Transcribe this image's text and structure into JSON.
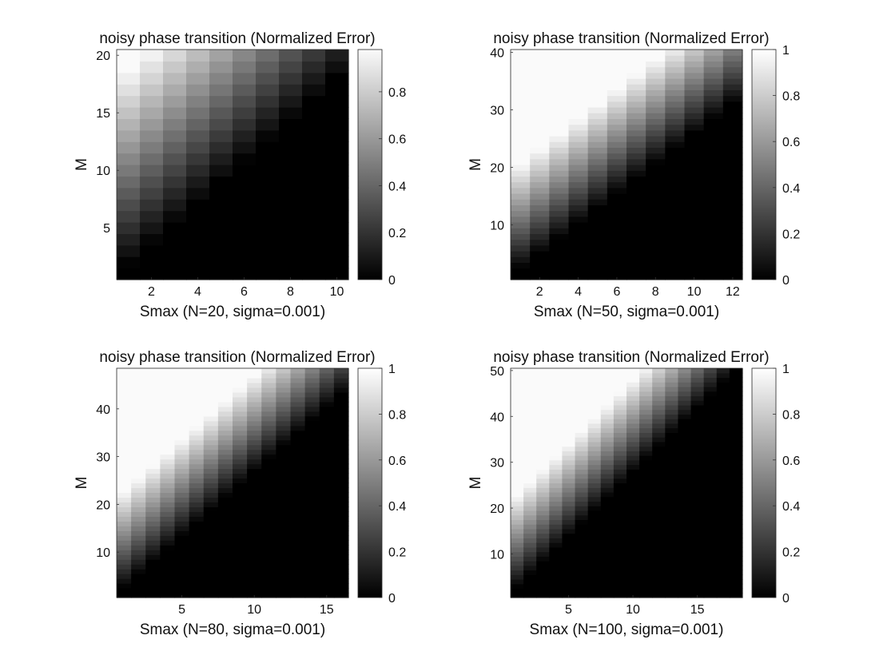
{
  "chart_data": [
    {
      "type": "heatmap",
      "title": "noisy phase transition (Normalized Error)",
      "xlabel": "Smax (N=20, sigma=0.001)",
      "ylabel": "M",
      "x_range": [
        1,
        10
      ],
      "y_range": [
        1,
        20
      ],
      "x_ticks": [
        2,
        4,
        6,
        8,
        10
      ],
      "y_ticks": [
        5,
        10,
        15,
        20
      ],
      "colorbar": {
        "ticks": [
          0,
          0.2,
          0.4,
          0.6,
          0.8
        ],
        "range": [
          0,
          0.98
        ],
        "colormap": "gray"
      },
      "value_model": "normalized error of cell (s, m) = clip((m - a*s - c) / w, 0, 1) with a=1.8, c=0, w=17",
      "slope": 1.8,
      "offset": 0,
      "width": 17
    },
    {
      "type": "heatmap",
      "title": "noisy phase transition (Normalized Error)",
      "xlabel": "Smax (N=50, sigma=0.001)",
      "ylabel": "M",
      "x_range": [
        1,
        12
      ],
      "y_range": [
        1,
        40
      ],
      "x_ticks": [
        2,
        4,
        6,
        8,
        10,
        12
      ],
      "y_ticks": [
        10,
        20,
        30,
        40
      ],
      "colorbar": {
        "ticks": [
          0,
          0.2,
          0.4,
          0.6,
          0.8,
          1
        ],
        "range": [
          0,
          1
        ],
        "colormap": "gray"
      },
      "value_model": "normalized error of cell (s, m) = clip((m - a*s - c) / w, 0, 1) with a=2.6, c=0, w=18",
      "slope": 2.6,
      "offset": 0,
      "width": 18
    },
    {
      "type": "heatmap",
      "title": "noisy phase transition (Normalized Error)",
      "xlabel": "Smax (N=80, sigma=0.001)",
      "ylabel": "M",
      "x_range": [
        1,
        16
      ],
      "y_range": [
        1,
        48
      ],
      "x_ticks": [
        5,
        10,
        15
      ],
      "y_ticks": [
        10,
        20,
        30,
        40
      ],
      "colorbar": {
        "ticks": [
          0,
          0.2,
          0.4,
          0.6,
          0.8,
          1
        ],
        "range": [
          0,
          1
        ],
        "colormap": "gray"
      },
      "value_model": "normalized error of cell (s, m) = clip((m - a*s - c) / w, 0, 1) with a=2.7, c=0, w=20",
      "slope": 2.7,
      "offset": 0,
      "width": 20
    },
    {
      "type": "heatmap",
      "title": "noisy phase transition (Normalized Error)",
      "xlabel": "Smax (N=100, sigma=0.001)",
      "ylabel": "M",
      "x_range": [
        1,
        18
      ],
      "y_range": [
        1,
        50
      ],
      "x_ticks": [
        5,
        10,
        15
      ],
      "y_ticks": [
        10,
        20,
        30,
        40,
        50
      ],
      "colorbar": {
        "ticks": [
          0,
          0.2,
          0.4,
          0.6,
          0.8,
          1
        ],
        "range": [
          0,
          1
        ],
        "colormap": "gray"
      },
      "value_model": "normalized error of cell (s, m) = clip((m - a*s - c) / w, 0, 1) with a=2.8, c=0, w=20",
      "slope": 2.8,
      "offset": 0,
      "width": 20
    }
  ]
}
